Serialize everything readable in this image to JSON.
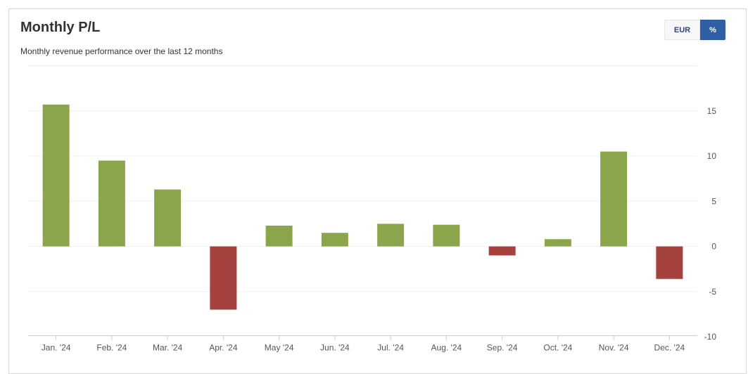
{
  "header": {
    "title": "Monthly P/L",
    "subtitle": "Monthly revenue performance over the last 12 months"
  },
  "toggle": {
    "options": [
      "EUR",
      "%"
    ],
    "selected": "%"
  },
  "colors": {
    "positive": "#8ba64a",
    "negative": "#a5423e",
    "toggle_active": "#2f5fa5"
  },
  "chart_data": {
    "type": "bar",
    "categories": [
      "Jan. '24",
      "Feb. '24",
      "Mar. '24",
      "Apr. '24",
      "May '24",
      "Jun. '24",
      "Jul. '24",
      "Aug. '24",
      "Sep. '24",
      "Oct. '24",
      "Nov. '24",
      "Dec. '24"
    ],
    "values": [
      15.7,
      9.5,
      6.3,
      -7.0,
      2.3,
      1.5,
      2.5,
      2.4,
      -1.0,
      0.8,
      10.5,
      -3.6
    ],
    "yticks": [
      15,
      10,
      5,
      0,
      -5,
      -10
    ],
    "ylim": [
      -10,
      20
    ],
    "axis_side": "right",
    "grid": true,
    "xlabel": "",
    "ylabel": ""
  }
}
